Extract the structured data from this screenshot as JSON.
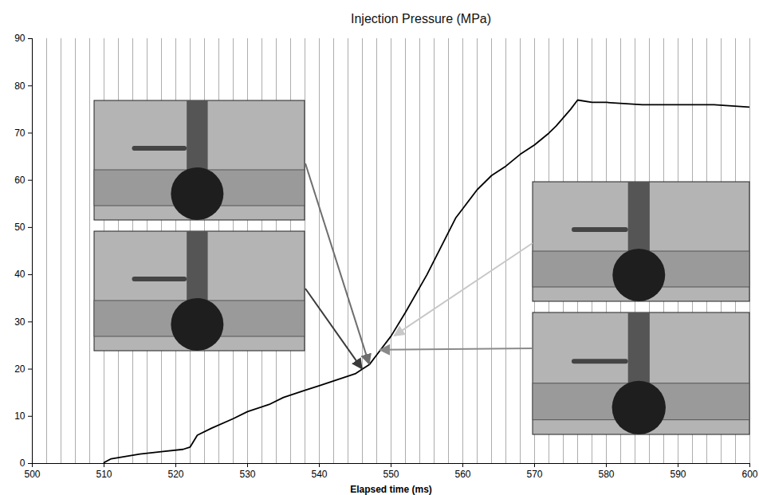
{
  "chart_data": {
    "type": "line",
    "title": "Injection Pressure (MPa)",
    "x_label": "Elapsed time (ms)",
    "x": [
      510,
      511,
      513,
      515,
      518,
      521,
      522,
      523,
      525,
      528,
      530,
      533,
      535,
      538,
      540,
      543,
      545,
      546,
      547,
      548,
      550,
      552,
      555,
      557,
      559,
      560,
      562,
      564,
      566,
      568,
      570,
      572,
      573,
      575,
      576,
      578,
      580,
      585,
      590,
      595,
      600
    ],
    "values": [
      0.2,
      1,
      1.5,
      2,
      2.5,
      3,
      3.5,
      6,
      7.5,
      9.5,
      11,
      12.5,
      14,
      15.5,
      16.5,
      18,
      19,
      20,
      21,
      23,
      27,
      32,
      40,
      46,
      52,
      54,
      58,
      61,
      63,
      65.5,
      67.5,
      70,
      71.5,
      75,
      77,
      76.5,
      76.5,
      76,
      76,
      76,
      75.5
    ],
    "color": "#000000",
    "xlim": [
      500,
      600
    ],
    "xticks": [
      500,
      510,
      520,
      530,
      540,
      550,
      560,
      570,
      580,
      590,
      600
    ],
    "ylim": [
      0,
      90
    ],
    "yticks": [
      0,
      10,
      20,
      30,
      40,
      50,
      60,
      70,
      80,
      90
    ],
    "grid": true,
    "annotations": [
      {
        "x": 547,
        "y": 21
      },
      {
        "x": 546,
        "y": 20
      },
      {
        "x": 550.5,
        "y": 27
      },
      {
        "x": 548.5,
        "y": 24
      }
    ]
  }
}
